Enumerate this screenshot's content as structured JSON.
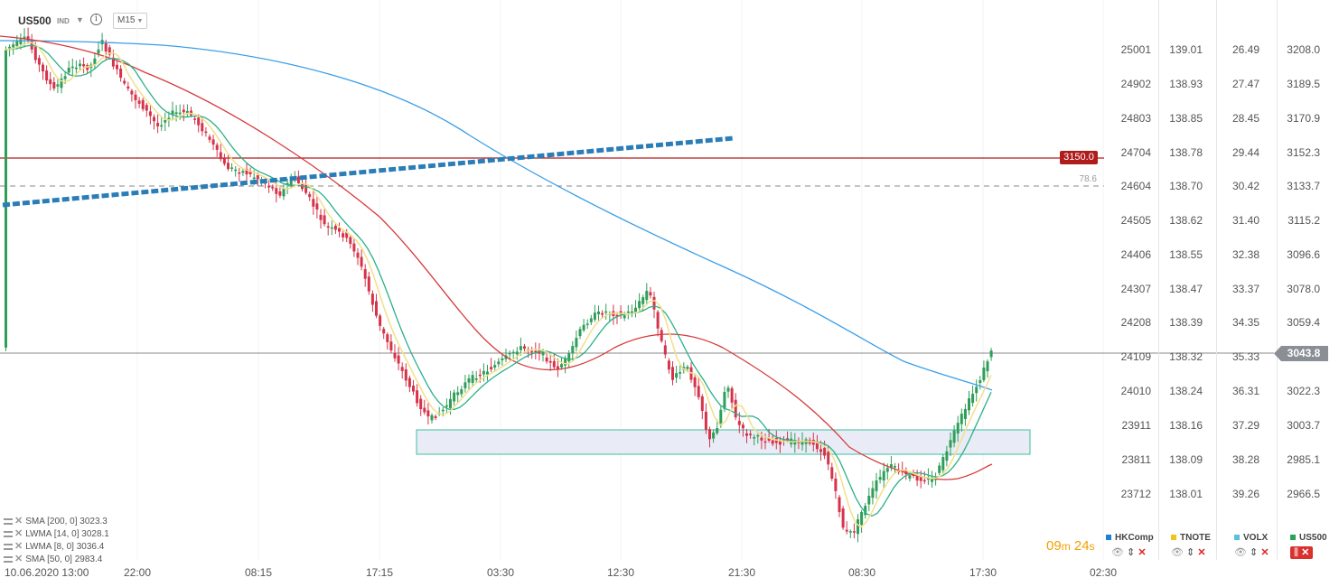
{
  "header": {
    "symbol": "US500",
    "type": "IND",
    "timeframe": "M15"
  },
  "axes": {
    "col1": [
      "25001",
      "24902",
      "24803",
      "24704",
      "24604",
      "24505",
      "24406",
      "24307",
      "24208",
      "24109",
      "24010",
      "23911",
      "23811",
      "23712"
    ],
    "col2": [
      "139.01",
      "138.93",
      "138.85",
      "138.78",
      "138.70",
      "138.62",
      "138.55",
      "138.47",
      "138.39",
      "138.32",
      "138.24",
      "138.16",
      "138.09",
      "138.01"
    ],
    "col3": [
      "26.49",
      "27.47",
      "28.45",
      "29.44",
      "30.42",
      "31.40",
      "32.38",
      "33.37",
      "34.35",
      "35.33",
      "36.31",
      "37.29",
      "38.28",
      "39.26"
    ],
    "col4": [
      "3208.0",
      "3189.5",
      "3170.9",
      "3152.3",
      "3133.7",
      "3115.2",
      "3096.6",
      "3078.0",
      "3059.4",
      "",
      "3022.3",
      "3003.7",
      "2985.1",
      "2966.5"
    ]
  },
  "badges": {
    "alert_level": "3150.0",
    "fib_label": "78.6",
    "last_price": "3043.8"
  },
  "legend": [
    "SMA [200, 0] 3023.3",
    "LWMA [14, 0] 3028.1",
    "LWMA [8, 0] 3036.4",
    "SMA [50, 0] 2983.4"
  ],
  "time_labels": [
    "10.06.2020 13:00",
    "22:00",
    "08:15",
    "17:15",
    "03:30",
    "12:30",
    "21:30",
    "08:30",
    "17:30",
    "02:30"
  ],
  "timer": {
    "minutes": "09",
    "m_unit": "m",
    "seconds": "24",
    "s_unit": "s"
  },
  "series": [
    {
      "name": "HKComp",
      "color": "#1e7fd8"
    },
    {
      "name": "TNOTE",
      "color": "#f0c419"
    },
    {
      "name": "VOLX",
      "color": "#5bc0de"
    },
    {
      "name": "US500",
      "color": "#27a35a"
    }
  ],
  "colors": {
    "up": "#2e9e59",
    "down": "#d6334a",
    "sma200": "#3a9ee8",
    "sma50": "#d63a3a",
    "lwma14": "#2bb08a",
    "lwma8": "#f2e08a",
    "trend": "#2b7db8"
  }
}
